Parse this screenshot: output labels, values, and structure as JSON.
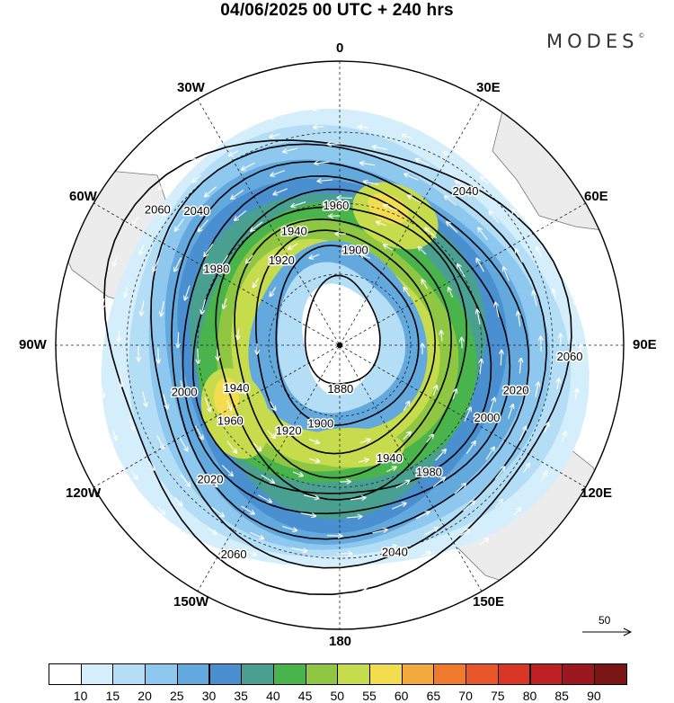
{
  "title": "04/06/2025  00 UTC  + 240 hrs",
  "brand": {
    "name": "MODES",
    "mark": "©"
  },
  "longitude_labels": [
    {
      "id": "lon-0",
      "label": "0",
      "bearing": 0
    },
    {
      "id": "lon-30e",
      "label": "30E",
      "bearing": 30
    },
    {
      "id": "lon-60e",
      "label": "60E",
      "bearing": 60
    },
    {
      "id": "lon-90e",
      "label": "90E",
      "bearing": 90
    },
    {
      "id": "lon-120e",
      "label": "120E",
      "bearing": 120
    },
    {
      "id": "lon-150e",
      "label": "150E",
      "bearing": 150
    },
    {
      "id": "lon-180",
      "label": "180",
      "bearing": 180
    },
    {
      "id": "lon-150w",
      "label": "150W",
      "bearing": 210
    },
    {
      "id": "lon-120w",
      "label": "120W",
      "bearing": 240
    },
    {
      "id": "lon-90w",
      "label": "90W",
      "bearing": 270
    },
    {
      "id": "lon-60w",
      "label": "60W",
      "bearing": 300
    },
    {
      "id": "lon-30w",
      "label": "30W",
      "bearing": 330
    }
  ],
  "contour_labels": [
    "1880",
    "1900",
    "1920",
    "1940",
    "1960",
    "1980",
    "2000",
    "2020",
    "2040",
    "2060"
  ],
  "reference_vector": {
    "label": "50"
  },
  "colorbar": {
    "levels": [
      "10",
      "15",
      "20",
      "25",
      "30",
      "35",
      "40",
      "45",
      "50",
      "55",
      "60",
      "65",
      "70",
      "75",
      "80",
      "85",
      "90"
    ],
    "colors": [
      "#ffffff",
      "#d4eefb",
      "#b4def6",
      "#8ec8ef",
      "#64a9de",
      "#4a8fcf",
      "#4aa090",
      "#49b44c",
      "#8fc743",
      "#c6dc4c",
      "#f3dc4e",
      "#f2a93e",
      "#ef7a2d",
      "#e8572a",
      "#d93627",
      "#bd2126",
      "#9b1820",
      "#7a1616"
    ]
  },
  "colors": {
    "land": "#ececec",
    "ocean": "#ffffff",
    "contour": "#000000",
    "wind_arrows": "#ffffff"
  }
}
